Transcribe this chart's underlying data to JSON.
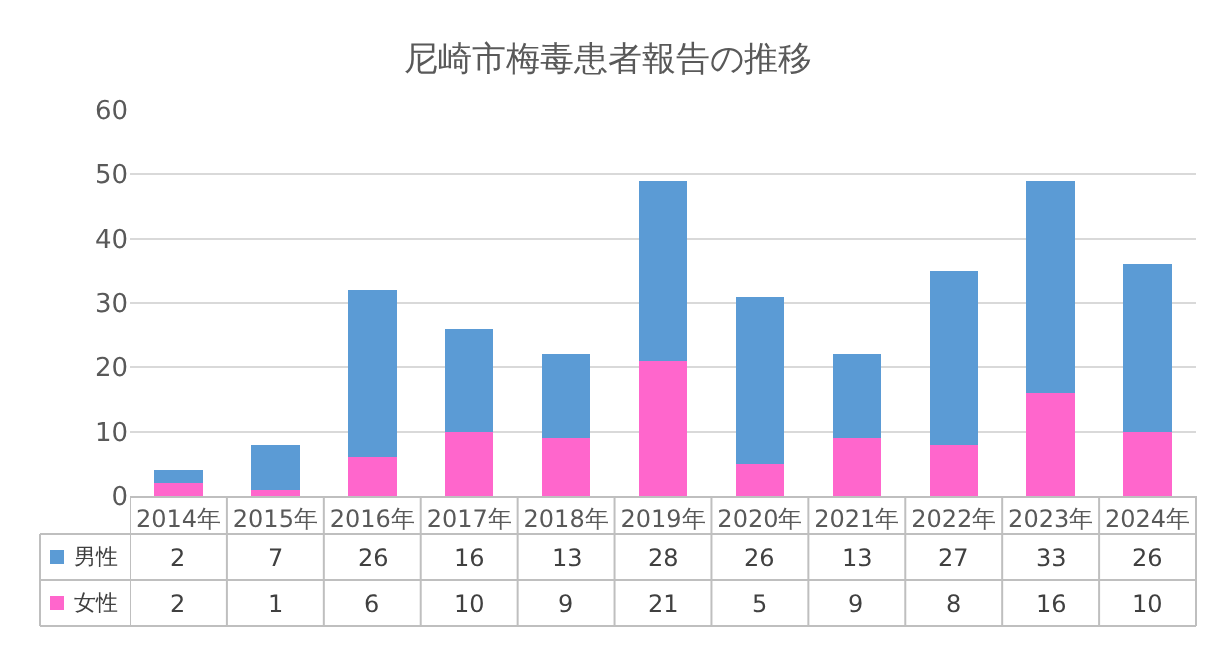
{
  "chart_data": {
    "type": "bar",
    "title": "尼崎市梅毒患者報告の推移",
    "categories": [
      "2014年",
      "2015年",
      "2016年",
      "2017年",
      "2018年",
      "2019年",
      "2020年",
      "2021年",
      "2022年",
      "2023年",
      "2024年"
    ],
    "series": [
      {
        "name": "女性",
        "color": "#ff66cc",
        "values": [
          2,
          1,
          6,
          10,
          9,
          21,
          5,
          9,
          8,
          16,
          10
        ]
      },
      {
        "name": "男性",
        "color": "#5b9bd5",
        "values": [
          2,
          7,
          26,
          16,
          13,
          28,
          26,
          13,
          27,
          33,
          26
        ]
      }
    ],
    "stacked": true,
    "ylim": [
      0,
      60
    ],
    "yticks": [
      0,
      10,
      20,
      30,
      40,
      50,
      60
    ],
    "grid": "y",
    "legend": "bottom",
    "data_labels": true
  }
}
